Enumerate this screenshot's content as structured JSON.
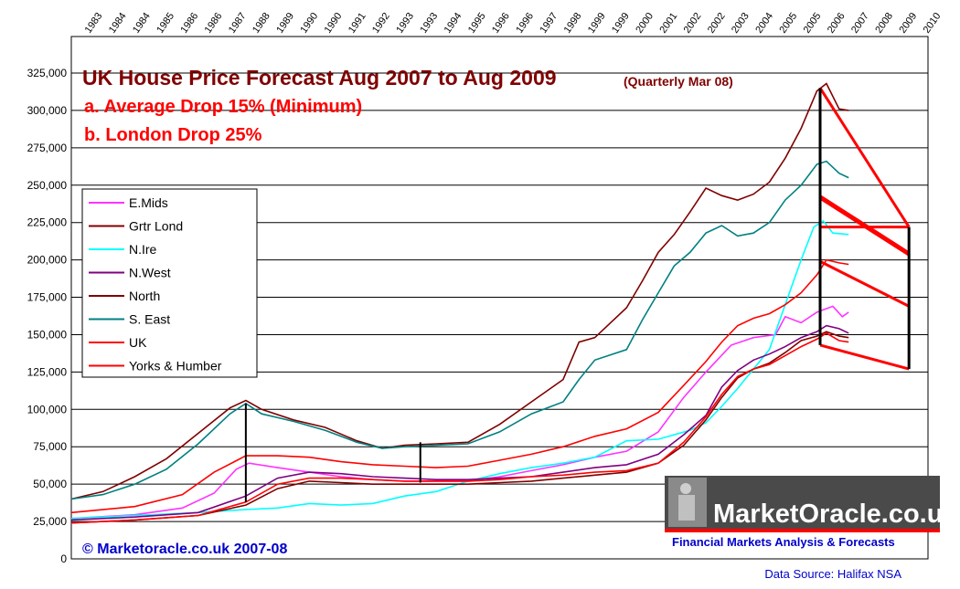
{
  "chart_data": {
    "type": "line",
    "title": "UK House Price Forecast Aug 2007 to Aug 2009",
    "subtitle": "(Quarterly Mar 08)",
    "annotations": [
      "a.  Average Drop 15% (Minimum)",
      "b. London Drop 25%"
    ],
    "copyright": "© Marketoracle.co.uk 2007-08",
    "data_source": "Data Source: Halifax NSA",
    "logo_text": "MarketOracle.co.uk",
    "logo_tagline": "Financial Markets Analysis & Forecasts",
    "x_tick_labels": [
      "1983",
      "1984",
      "1984",
      "1985",
      "1986",
      "1986",
      "1987",
      "1988",
      "1989",
      "1990",
      "1990",
      "1991",
      "1992",
      "1993",
      "1993",
      "1994",
      "1995",
      "1996",
      "1996",
      "1997",
      "1998",
      "1999",
      "1999",
      "2000",
      "2001",
      "2002",
      "2002",
      "2003",
      "2004",
      "2005",
      "2005",
      "2006",
      "2007",
      "2008",
      "2009",
      "2010"
    ],
    "x_tick_years": [
      1983,
      1984,
      1985,
      1986,
      1987,
      1988,
      1989,
      1990,
      1991,
      1992,
      1993,
      1994,
      1995,
      1996,
      1997,
      1998,
      1999,
      2000,
      2001,
      2002,
      2003,
      2004,
      2005,
      2006,
      2007,
      2008,
      2009,
      2010
    ],
    "y_tick_labels": [
      "0",
      "25,000",
      "50,000",
      "75,000",
      "100,000",
      "125,000",
      "150,000",
      "175,000",
      "200,000",
      "225,000",
      "250,000",
      "275,000",
      "300,000",
      "325,000"
    ],
    "ylim": [
      0,
      325000
    ],
    "xlim": [
      1983,
      2010
    ],
    "grid": "horizontal",
    "legend_position": "left",
    "series": [
      {
        "name": "E.Mids",
        "color": "#ff33ff",
        "points": [
          [
            1983,
            27000
          ],
          [
            1985,
            29500
          ],
          [
            1986.5,
            34000
          ],
          [
            1987.5,
            44000
          ],
          [
            1988.2,
            60000
          ],
          [
            1988.6,
            64000
          ],
          [
            1989.5,
            61000
          ],
          [
            1990.5,
            58000
          ],
          [
            1991.5,
            55000
          ],
          [
            1992.5,
            53000
          ],
          [
            1993.5,
            52000
          ],
          [
            1994.5,
            52000
          ],
          [
            1995.5,
            52000
          ],
          [
            1996.5,
            55000
          ],
          [
            1997.5,
            59000
          ],
          [
            1998.5,
            63000
          ],
          [
            1999.5,
            68000
          ],
          [
            2000.5,
            72000
          ],
          [
            2001.5,
            85000
          ],
          [
            2002.3,
            108000
          ],
          [
            2003,
            125000
          ],
          [
            2003.8,
            143000
          ],
          [
            2004.5,
            148000
          ],
          [
            2005.2,
            150000
          ],
          [
            2005.5,
            162000
          ],
          [
            2006,
            158000
          ],
          [
            2006.5,
            165000
          ],
          [
            2007,
            169000
          ],
          [
            2007.3,
            162000
          ],
          [
            2007.5,
            165000
          ]
        ]
      },
      {
        "name": "Grtr Lond",
        "color": "#800000",
        "points": [
          [
            1983,
            40000
          ],
          [
            1984,
            45000
          ],
          [
            1985,
            55000
          ],
          [
            1986,
            67000
          ],
          [
            1987,
            84000
          ],
          [
            1988,
            101000
          ],
          [
            1988.5,
            106000
          ],
          [
            1989,
            100000
          ],
          [
            1990,
            93000
          ],
          [
            1991,
            88000
          ],
          [
            1992,
            79000
          ],
          [
            1992.8,
            74000
          ],
          [
            1993.5,
            76000
          ],
          [
            1994.5,
            77000
          ],
          [
            1995.5,
            78000
          ],
          [
            1996.5,
            90000
          ],
          [
            1997.5,
            105000
          ],
          [
            1998.5,
            120000
          ],
          [
            1999,
            145000
          ],
          [
            1999.5,
            148000
          ],
          [
            2000.5,
            168000
          ],
          [
            2001,
            186000
          ],
          [
            2001.5,
            205000
          ],
          [
            2002,
            217000
          ],
          [
            2002.5,
            232000
          ],
          [
            2003,
            248000
          ],
          [
            2003.5,
            243000
          ],
          [
            2004,
            240000
          ],
          [
            2004.5,
            244000
          ],
          [
            2005,
            252000
          ],
          [
            2005.5,
            268000
          ],
          [
            2006,
            288000
          ],
          [
            2006.5,
            313000
          ],
          [
            2006.8,
            318000
          ],
          [
            2007.2,
            301000
          ],
          [
            2007.5,
            300000
          ]
        ]
      },
      {
        "name": "N.Ire",
        "color": "#00ffff",
        "points": [
          [
            1983,
            27000
          ],
          [
            1985,
            29000
          ],
          [
            1987,
            31000
          ],
          [
            1988.5,
            33000
          ],
          [
            1989.5,
            34000
          ],
          [
            1990.5,
            37000
          ],
          [
            1991.5,
            36000
          ],
          [
            1992.5,
            37000
          ],
          [
            1993.5,
            42000
          ],
          [
            1994.5,
            45000
          ],
          [
            1995.5,
            52000
          ],
          [
            1996.5,
            57000
          ],
          [
            1997.5,
            61000
          ],
          [
            1998.5,
            64000
          ],
          [
            1999.5,
            68000
          ],
          [
            2000.5,
            79000
          ],
          [
            2001.5,
            80000
          ],
          [
            2002.5,
            86000
          ],
          [
            2003,
            91000
          ],
          [
            2003.5,
            102000
          ],
          [
            2004,
            114000
          ],
          [
            2004.5,
            127000
          ],
          [
            2005,
            140000
          ],
          [
            2005.5,
            170000
          ],
          [
            2006,
            200000
          ],
          [
            2006.4,
            222000
          ],
          [
            2006.7,
            226000
          ],
          [
            2007,
            218000
          ],
          [
            2007.5,
            217000
          ]
        ]
      },
      {
        "name": "N.West",
        "color": "#800080",
        "points": [
          [
            1983,
            26000
          ],
          [
            1985,
            28000
          ],
          [
            1987,
            31000
          ],
          [
            1988.5,
            42000
          ],
          [
            1989.5,
            54000
          ],
          [
            1990.5,
            58000
          ],
          [
            1991.5,
            57000
          ],
          [
            1992.5,
            55000
          ],
          [
            1993.5,
            54000
          ],
          [
            1994.5,
            53000
          ],
          [
            1995.5,
            53000
          ],
          [
            1996.5,
            54000
          ],
          [
            1997.5,
            55000
          ],
          [
            1998.5,
            58000
          ],
          [
            1999.5,
            61000
          ],
          [
            2000.5,
            63000
          ],
          [
            2001.5,
            70000
          ],
          [
            2002.3,
            83000
          ],
          [
            2003,
            96000
          ],
          [
            2003.5,
            115000
          ],
          [
            2004,
            126000
          ],
          [
            2004.5,
            133000
          ],
          [
            2005,
            137000
          ],
          [
            2005.5,
            142000
          ],
          [
            2006,
            148000
          ],
          [
            2006.5,
            152000
          ],
          [
            2006.8,
            156000
          ],
          [
            2007.2,
            154000
          ],
          [
            2007.5,
            151000
          ]
        ]
      },
      {
        "name": "North",
        "color": "#800000",
        "points": [
          [
            1983,
            24000
          ],
          [
            1985,
            26000
          ],
          [
            1987,
            29000
          ],
          [
            1988.5,
            36000
          ],
          [
            1989.5,
            47000
          ],
          [
            1990.5,
            52000
          ],
          [
            1991.5,
            51000
          ],
          [
            1992.5,
            50000
          ],
          [
            1993.5,
            50000
          ],
          [
            1994.5,
            50000
          ],
          [
            1995.5,
            50000
          ],
          [
            1996.5,
            51000
          ],
          [
            1997.5,
            52000
          ],
          [
            1998.5,
            54000
          ],
          [
            1999.5,
            56000
          ],
          [
            2000.5,
            58000
          ],
          [
            2001.5,
            64000
          ],
          [
            2002.3,
            76000
          ],
          [
            2003,
            93000
          ],
          [
            2003.5,
            108000
          ],
          [
            2004,
            121000
          ],
          [
            2004.5,
            127000
          ],
          [
            2005,
            131000
          ],
          [
            2005.5,
            138000
          ],
          [
            2006,
            146000
          ],
          [
            2006.5,
            149000
          ],
          [
            2006.8,
            152000
          ],
          [
            2007.2,
            149000
          ],
          [
            2007.5,
            148000
          ]
        ]
      },
      {
        "name": "S. East",
        "color": "#008080",
        "points": [
          [
            1983,
            40000
          ],
          [
            1984,
            43000
          ],
          [
            1985,
            50000
          ],
          [
            1986,
            60000
          ],
          [
            1987,
            77000
          ],
          [
            1988,
            97000
          ],
          [
            1988.5,
            104000
          ],
          [
            1989,
            97000
          ],
          [
            1990,
            92000
          ],
          [
            1991,
            86000
          ],
          [
            1992,
            78000
          ],
          [
            1992.8,
            74000
          ],
          [
            1993.5,
            75000
          ],
          [
            1994.5,
            76000
          ],
          [
            1995.5,
            77000
          ],
          [
            1996.5,
            85000
          ],
          [
            1997.5,
            97000
          ],
          [
            1998.5,
            105000
          ],
          [
            1999,
            120000
          ],
          [
            1999.5,
            133000
          ],
          [
            2000.5,
            140000
          ],
          [
            2001,
            160000
          ],
          [
            2001.5,
            178000
          ],
          [
            2002,
            196000
          ],
          [
            2002.5,
            205000
          ],
          [
            2003,
            218000
          ],
          [
            2003.5,
            223000
          ],
          [
            2004,
            216000
          ],
          [
            2004.5,
            218000
          ],
          [
            2005,
            225000
          ],
          [
            2005.5,
            240000
          ],
          [
            2006,
            250000
          ],
          [
            2006.5,
            264000
          ],
          [
            2006.8,
            266000
          ],
          [
            2007.2,
            258000
          ],
          [
            2007.5,
            255000
          ]
        ]
      },
      {
        "name": "UK",
        "color": "#ff0000",
        "points": [
          [
            1983,
            31000
          ],
          [
            1985,
            35000
          ],
          [
            1986.5,
            43000
          ],
          [
            1987.5,
            58000
          ],
          [
            1988.5,
            69000
          ],
          [
            1989.5,
            69000
          ],
          [
            1990.5,
            68000
          ],
          [
            1991.5,
            65000
          ],
          [
            1992.5,
            63000
          ],
          [
            1993.5,
            62000
          ],
          [
            1994.5,
            61000
          ],
          [
            1995.5,
            62000
          ],
          [
            1996.5,
            66000
          ],
          [
            1997.5,
            70000
          ],
          [
            1998.5,
            75000
          ],
          [
            1999.5,
            82000
          ],
          [
            2000.5,
            87000
          ],
          [
            2001.5,
            98000
          ],
          [
            2002.3,
            116000
          ],
          [
            2003,
            132000
          ],
          [
            2003.5,
            145000
          ],
          [
            2004,
            156000
          ],
          [
            2004.5,
            161000
          ],
          [
            2005,
            164000
          ],
          [
            2005.5,
            170000
          ],
          [
            2006,
            178000
          ],
          [
            2006.5,
            190000
          ],
          [
            2006.8,
            200000
          ],
          [
            2007.2,
            198000
          ],
          [
            2007.5,
            197000
          ]
        ]
      },
      {
        "name": "Yorks & Humber",
        "color": "#ff0000",
        "points": [
          [
            1983,
            24000
          ],
          [
            1985,
            26000
          ],
          [
            1987,
            29000
          ],
          [
            1988.5,
            38000
          ],
          [
            1989.5,
            50000
          ],
          [
            1990.5,
            54000
          ],
          [
            1991.5,
            54000
          ],
          [
            1992.5,
            53000
          ],
          [
            1993.5,
            52000
          ],
          [
            1994.5,
            52000
          ],
          [
            1995.5,
            52000
          ],
          [
            1996.5,
            53000
          ],
          [
            1997.5,
            55000
          ],
          [
            1998.5,
            56000
          ],
          [
            1999.5,
            58000
          ],
          [
            2000.5,
            59000
          ],
          [
            2001.5,
            64000
          ],
          [
            2002.3,
            78000
          ],
          [
            2003,
            95000
          ],
          [
            2003.5,
            110000
          ],
          [
            2004,
            122000
          ],
          [
            2004.5,
            127000
          ],
          [
            2005,
            130000
          ],
          [
            2005.5,
            136000
          ],
          [
            2006,
            142000
          ],
          [
            2006.5,
            147000
          ],
          [
            2006.8,
            151000
          ],
          [
            2007.2,
            146000
          ],
          [
            2007.5,
            145000
          ]
        ]
      }
    ],
    "forecast_lines": [
      {
        "from": [
          2006.6,
          315000
        ],
        "to": [
          2009.4,
          222000
        ]
      },
      {
        "from": [
          2006.6,
          242000
        ],
        "to": [
          2009.4,
          204000
        ]
      },
      {
        "from": [
          2006.6,
          199000
        ],
        "to": [
          2009.4,
          169000
        ]
      },
      {
        "from": [
          2006.6,
          143000
        ],
        "to": [
          2009.4,
          127000
        ]
      }
    ],
    "forecast_vertical": {
      "x": 2006.6,
      "y_top": 315000,
      "y_bottom": 143000
    },
    "forecast_end_vertical": {
      "x": 2009.4,
      "y_top": 222000,
      "y_bottom": 127000
    },
    "forecast_end_level": {
      "x1": 2006.6,
      "x2": 2009.4,
      "y": 222000
    },
    "peak_markers": [
      {
        "x": 1988.5,
        "y_top": 104000,
        "y_bottom": 38000
      },
      {
        "x": 1994.0,
        "y_top": 78000,
        "y_bottom": 51000
      }
    ]
  }
}
